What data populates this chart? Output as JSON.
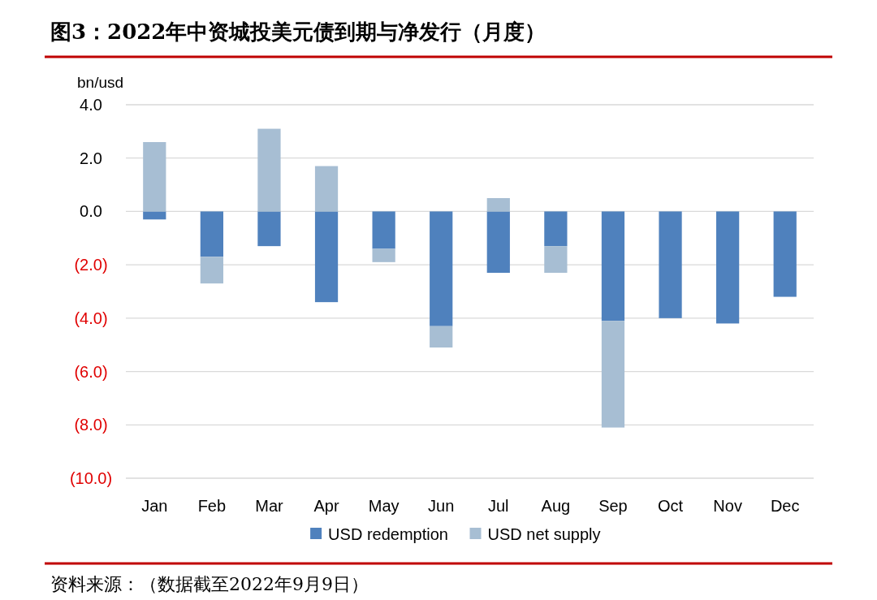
{
  "chart_data": {
    "type": "bar",
    "stacked": true,
    "title": "图3：2022年中资城投美元债到期与净发行（月度）",
    "ylabel": "bn/usd",
    "annotations": [
      "资料来源：（数据截至2022年9月9日）"
    ],
    "categories": [
      "Jan",
      "Feb",
      "Mar",
      "Apr",
      "May",
      "Jun",
      "Jul",
      "Aug",
      "Sep",
      "Oct",
      "Nov",
      "Dec"
    ],
    "series": [
      {
        "name": "USD redemption",
        "color": "#4f81bd",
        "values": [
          -0.3,
          -1.7,
          -1.3,
          -3.4,
          -1.4,
          -4.3,
          -2.3,
          -1.3,
          -4.1,
          -4.0,
          -4.2,
          -3.2
        ]
      },
      {
        "name": "USD net supply",
        "color": "#a7bed3",
        "values": [
          2.6,
          -1.0,
          3.1,
          1.7,
          -0.5,
          -0.8,
          0.5,
          -1.0,
          -4.0,
          null,
          null,
          null
        ]
      }
    ],
    "ylim": [
      -10,
      4
    ],
    "yticks": [
      {
        "value": 4,
        "label": "4.0"
      },
      {
        "value": 2,
        "label": "2.0"
      },
      {
        "value": 0,
        "label": "0.0"
      },
      {
        "value": -2,
        "label": "(2.0)"
      },
      {
        "value": -4,
        "label": "(4.0)"
      },
      {
        "value": -6,
        "label": "(6.0)"
      },
      {
        "value": -8,
        "label": "(8.0)"
      },
      {
        "value": -10,
        "label": "(10.0)"
      }
    ],
    "grid": "y",
    "legend": "bottom"
  }
}
